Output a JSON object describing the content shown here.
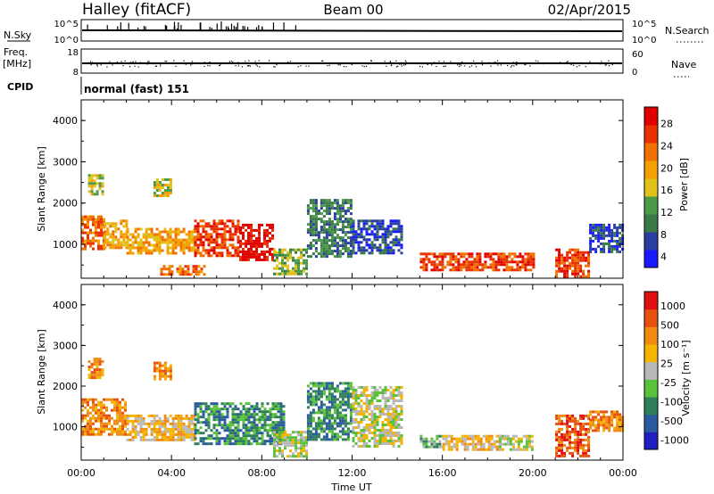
{
  "header": {
    "station": "Halley (fitACF)",
    "beam": "Beam 00",
    "date": "02/Apr/2015"
  },
  "strip_labels": {
    "nsky": "N.Sky",
    "nsearch": "N.Search",
    "freq": "Freq.",
    "mhz": "[MHz]",
    "nave": "Nave",
    "cpid": "CPID",
    "cpid_value": "normal (fast) 151",
    "nsky_ticks": [
      "10^5",
      "10^0"
    ],
    "nsearch_ticks": [
      "10^5",
      "10^0"
    ],
    "freq_ticks": [
      "18",
      "8"
    ],
    "nave_ticks": [
      "60",
      "0"
    ]
  },
  "colors": {
    "power": [
      "#1a1aff",
      "#2a3fa0",
      "#3a7a46",
      "#4a9a4a",
      "#e0c21a",
      "#f5a000",
      "#f07000",
      "#e83000",
      "#e00000"
    ],
    "velocity": [
      "#2020c0",
      "#2a5aa0",
      "#2e7f5a",
      "#5ac23a",
      "#b8b8b8",
      "#f5b400",
      "#f08a10",
      "#e85010",
      "#e01010"
    ]
  },
  "chart_data": [
    {
      "type": "heatmap",
      "title": "Power",
      "ylabel": "Slant Range [km]",
      "colorbar_label": "Power [dB]",
      "colorbar_ticks": [
        "28",
        "24",
        "20",
        "16",
        "12",
        "8",
        "4"
      ],
      "x_ticks": [
        "00:00",
        "04:00",
        "08:00",
        "12:00",
        "16:00",
        "20:00",
        "00:00"
      ],
      "y_ticks": [
        "4000",
        "3000",
        "2000",
        "1000"
      ],
      "xlim_hours": [
        0,
        24
      ],
      "ylim_km": [
        180,
        4500
      ],
      "patches": [
        {
          "t0": 0.0,
          "t1": 1.0,
          "r0": 900,
          "r1": 1700,
          "level": 6
        },
        {
          "t0": 0.3,
          "t1": 0.9,
          "r0": 2200,
          "r1": 2700,
          "level": 4
        },
        {
          "t0": 1.0,
          "t1": 2.0,
          "r0": 900,
          "r1": 1600,
          "level": 5
        },
        {
          "t0": 3.2,
          "t1": 4.0,
          "r0": 2200,
          "r1": 2600,
          "level": 4
        },
        {
          "t0": 2.0,
          "t1": 5.0,
          "r0": 800,
          "r1": 1400,
          "level": 5
        },
        {
          "t0": 5.0,
          "t1": 7.0,
          "r0": 700,
          "r1": 1600,
          "level": 7
        },
        {
          "t0": 7.0,
          "t1": 8.5,
          "r0": 600,
          "r1": 1500,
          "level": 8
        },
        {
          "t0": 3.5,
          "t1": 5.5,
          "r0": 250,
          "r1": 500,
          "level": 6
        },
        {
          "t0": 8.5,
          "t1": 10.0,
          "r0": 300,
          "r1": 900,
          "level": 3
        },
        {
          "t0": 10.0,
          "t1": 12.0,
          "r0": 700,
          "r1": 2100,
          "level": 2
        },
        {
          "t0": 12.0,
          "t1": 14.2,
          "r0": 800,
          "r1": 1600,
          "level": 1
        },
        {
          "t0": 15.0,
          "t1": 20.0,
          "r0": 400,
          "r1": 800,
          "level": 7
        },
        {
          "t0": 21.0,
          "t1": 22.5,
          "r0": 250,
          "r1": 900,
          "level": 7
        },
        {
          "t0": 22.5,
          "t1": 24.0,
          "r0": 800,
          "r1": 1500,
          "level": 1
        }
      ]
    },
    {
      "type": "heatmap",
      "title": "Velocity",
      "ylabel": "Slant Range [km]",
      "xlabel": "Time UT",
      "colorbar_label": "Velocity [m s⁻¹]",
      "colorbar_ticks": [
        "1000",
        "500",
        "100",
        "25",
        "-25",
        "-100",
        "-500",
        "-1000"
      ],
      "x_ticks": [
        "00:00",
        "04:00",
        "08:00",
        "12:00",
        "16:00",
        "20:00",
        "00:00"
      ],
      "y_ticks": [
        "4000",
        "3000",
        "2000",
        "1000"
      ],
      "xlim_hours": [
        0,
        24
      ],
      "ylim_km": [
        180,
        4500
      ],
      "patches": [
        {
          "t0": 0.0,
          "t1": 2.0,
          "r0": 800,
          "r1": 1700,
          "level": 6
        },
        {
          "t0": 0.3,
          "t1": 0.9,
          "r0": 2200,
          "r1": 2700,
          "level": 6
        },
        {
          "t0": 2.0,
          "t1": 5.0,
          "r0": 700,
          "r1": 1300,
          "level": 5
        },
        {
          "t0": 3.2,
          "t1": 4.0,
          "r0": 2200,
          "r1": 2600,
          "level": 6
        },
        {
          "t0": 5.0,
          "t1": 9.0,
          "r0": 600,
          "r1": 1600,
          "level": 2
        },
        {
          "t0": 8.5,
          "t1": 10.0,
          "r0": 300,
          "r1": 900,
          "level": 4
        },
        {
          "t0": 10.0,
          "t1": 12.0,
          "r0": 700,
          "r1": 2100,
          "level": 2
        },
        {
          "t0": 12.0,
          "t1": 14.2,
          "r0": 500,
          "r1": 2000,
          "level": 4
        },
        {
          "t0": 15.0,
          "t1": 16.0,
          "r0": 500,
          "r1": 800,
          "level": 3
        },
        {
          "t0": 16.0,
          "t1": 18.5,
          "r0": 450,
          "r1": 800,
          "level": 5
        },
        {
          "t0": 18.5,
          "t1": 20.0,
          "r0": 450,
          "r1": 800,
          "level": 4
        },
        {
          "t0": 21.0,
          "t1": 22.5,
          "r0": 250,
          "r1": 1300,
          "level": 7
        },
        {
          "t0": 22.5,
          "t1": 24.0,
          "r0": 900,
          "r1": 1400,
          "level": 6
        }
      ]
    }
  ]
}
